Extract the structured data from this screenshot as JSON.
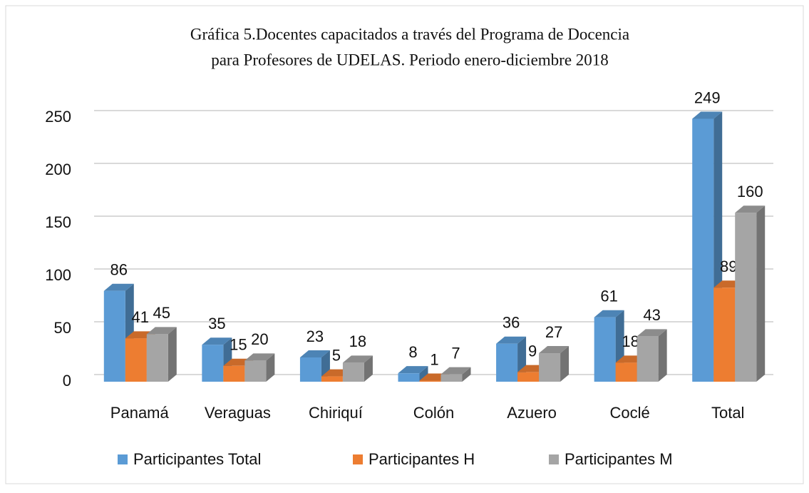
{
  "chart_data": {
    "type": "bar3d",
    "title": [
      "Gráfica 5.Docentes capacitados a través del Programa de Docencia",
      "para Profesores de UDELAS. Periodo enero-diciembre 2018"
    ],
    "categories": [
      "Panamá",
      "Veraguas",
      "Chiriquí",
      "Colón",
      "Azuero",
      "Coclé",
      "Total"
    ],
    "series": [
      {
        "name": "Participantes Total",
        "color": "#5b9bd5",
        "values": [
          86,
          35,
          23,
          8,
          36,
          61,
          249
        ]
      },
      {
        "name": "Participantes H",
        "color": "#ed7d31",
        "values": [
          41,
          15,
          5,
          1,
          9,
          18,
          89
        ]
      },
      {
        "name": "Participantes M",
        "color": "#a5a5a5",
        "values": [
          45,
          20,
          18,
          7,
          27,
          43,
          160
        ]
      }
    ],
    "ylim": [
      0,
      250
    ],
    "yticks": [
      0,
      50,
      100,
      150,
      200,
      250
    ],
    "grid": true,
    "legend": "bottom"
  }
}
